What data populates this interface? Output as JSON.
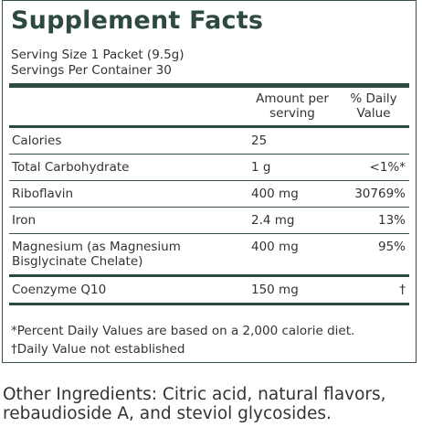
{
  "header": {
    "title": "Supplement Facts",
    "serving_size": "Serving Size 1 Packet (9.5g)",
    "servings_per_container": "Servings Per Container 30"
  },
  "table": {
    "columns": [
      "Amount per serving",
      "% Daily Value"
    ],
    "rows": [
      [
        "Calories",
        "25",
        ""
      ],
      [
        "Total Carbohydrate",
        "1 g",
        "<1%*"
      ],
      [
        "Riboflavin",
        "400 mg",
        "30769%"
      ],
      [
        "Iron",
        "2.4 mg",
        "13%"
      ],
      [
        "Magnesium (as Magnesium Bisglycinate Chelate)",
        "400 mg",
        "95%"
      ],
      [
        "Coenzyme Q10",
        "150 mg",
        "†"
      ]
    ]
  },
  "footnotes": [
    "*Percent Daily Values are based on a 2,000 calorie diet.",
    "†Daily Value not established"
  ],
  "other_ingredients": "Other Ingredients: Citric acid, natural flavors, rebaudioside A, and steviol glycosides."
}
